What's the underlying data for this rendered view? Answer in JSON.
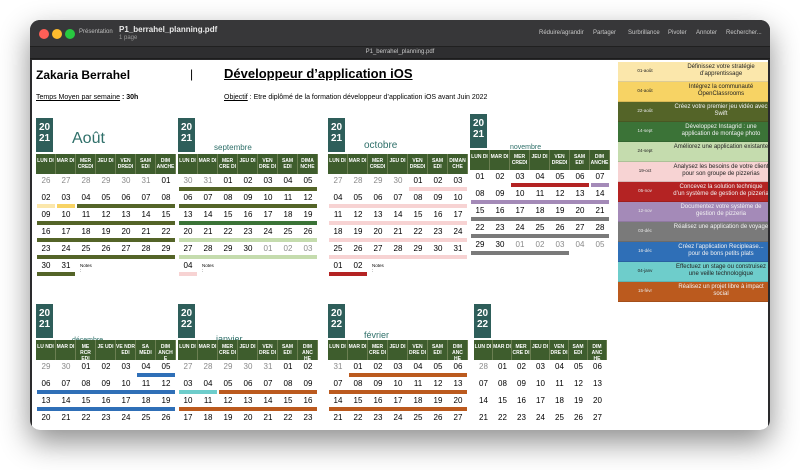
{
  "window": {
    "title": "P1_berrahel_planning.pdf",
    "subtitle": "1 page",
    "sidebar_button": "Présentation",
    "tab_title": "P1_berrahel_planning.pdf",
    "toolbar": [
      {
        "label": "Réduire/agrandir",
        "icon": "zoom-icon"
      },
      {
        "label": "Partager",
        "icon": "share-icon"
      },
      {
        "label": "Surbrillance",
        "icon": "highlight-icon"
      },
      {
        "label": "Pivoter",
        "icon": "rotate-icon"
      },
      {
        "label": "Annoter",
        "icon": "markup-icon"
      },
      {
        "label": "Rechercher...",
        "icon": "search-icon"
      }
    ]
  },
  "document": {
    "name": "Zakaria Berrahel",
    "separator": "|",
    "job_title": "Développeur d’application  iOS",
    "temps_label": "Temps Moyen par semaine",
    "temps_value": " : 30h",
    "objectif_label": "Objectif",
    "objectif_value": " : Etre diplômé de la formation développeur d’application iOS avant Juin 2022",
    "notes_label": "Notes :"
  },
  "legend": [
    {
      "date": "01-août",
      "text": "Définissez votre stratégie d’apprentissage",
      "color": "#fbe7ab"
    },
    {
      "date": "04-août",
      "text": "Intégrez la communauté OpenClassrooms",
      "color": "#f7d364"
    },
    {
      "date": "22-août",
      "text": "Créez votre premier jeu vidéo avec Swift",
      "color": "#546428"
    },
    {
      "date": "14-sept",
      "text": "Développez Instagrid : une application de montage photo",
      "color": "#3b7337"
    },
    {
      "date": "24-sept",
      "text": "Améliorez une application existante",
      "color": "#c5dcae"
    },
    {
      "date": "19-oct",
      "text": "Analysez les besoins de votre client pour son groupe de pizzerias",
      "color": "#f7d3d3"
    },
    {
      "date": "05-nov",
      "text": "Concevez la solution technique d’un système de gestion de pizzeria",
      "color": "#b42323"
    },
    {
      "date": "12-nov",
      "text": "Documentez votre système de gestion de pizzeria",
      "color": "#a48ab8"
    },
    {
      "date": "03-déc",
      "text": "Réalisez une application de voyage",
      "color": "#7a7a7a"
    },
    {
      "date": "16-déc",
      "text": "Créez l’application Reciplease... pour de bons petits plats",
      "color": "#2f6fb7"
    },
    {
      "date": "04-janv",
      "text": "Effectuez un stage ou construisez une veille technologique",
      "color": "#6ecdcb"
    },
    {
      "date": "15-févr",
      "text": "Réalisez un projet libre à impact social",
      "color": "#bb5a1e"
    }
  ],
  "months": [
    {
      "year": [
        "20",
        "21"
      ],
      "name": "Août",
      "days": [
        "LUN DI",
        "MAR DI",
        "MER CREDI",
        "JEU DI",
        "VEN DREDI",
        "SAM EDI",
        "DIM ANCHE"
      ],
      "weeks": [
        {
          "d": [
            "26",
            "27",
            "28",
            "29",
            "30",
            "31",
            "01"
          ],
          "grey": [
            0,
            1,
            2,
            3,
            4,
            5
          ],
          "bars": []
        },
        {
          "d": [
            "02",
            "03",
            "04",
            "05",
            "06",
            "07",
            "08"
          ],
          "grey": [],
          "bars": [
            {
              "c": "#fbe7ab",
              "s": 0,
              "e": 1
            },
            {
              "c": "#f7d364",
              "s": 1,
              "e": 2
            },
            {
              "c": "#546428",
              "s": 2,
              "e": 7
            }
          ]
        },
        {
          "d": [
            "09",
            "10",
            "11",
            "12",
            "13",
            "14",
            "15"
          ],
          "grey": [],
          "bars": [
            {
              "c": "#546428",
              "s": 0,
              "e": 7
            }
          ]
        },
        {
          "d": [
            "16",
            "17",
            "18",
            "19",
            "20",
            "21",
            "22"
          ],
          "grey": [],
          "bars": [
            {
              "c": "#546428",
              "s": 0,
              "e": 7
            }
          ]
        },
        {
          "d": [
            "23",
            "24",
            "25",
            "26",
            "27",
            "28",
            "29"
          ],
          "grey": [],
          "bars": [
            {
              "c": "#546428",
              "s": 0,
              "e": 7
            }
          ]
        },
        {
          "d": [
            "30",
            "31"
          ],
          "grey": [],
          "bars": [
            {
              "c": "#546428",
              "s": 0,
              "e": 2
            }
          ],
          "notes": true
        }
      ]
    },
    {
      "year": [
        "20",
        "21"
      ],
      "name": "septembre",
      "days": [
        "LUN DI",
        "MAR DI",
        "MER CRE DI",
        "JEU DI",
        "VEN DRE DI",
        "SAM EDI",
        "DIMA NCHE"
      ],
      "weeks": [
        {
          "d": [
            "30",
            "31",
            "01",
            "02",
            "03",
            "04",
            "05"
          ],
          "grey": [
            0,
            1
          ],
          "bars": [
            {
              "c": "#546428",
              "s": 0,
              "e": 7
            }
          ]
        },
        {
          "d": [
            "06",
            "07",
            "08",
            "09",
            "10",
            "11",
            "12"
          ],
          "grey": [],
          "bars": [
            {
              "c": "#546428",
              "s": 0,
              "e": 7
            }
          ]
        },
        {
          "d": [
            "13",
            "14",
            "15",
            "16",
            "17",
            "18",
            "19"
          ],
          "grey": [],
          "bars": [
            {
              "c": "#3b7337",
              "s": 0,
              "e": 7
            }
          ]
        },
        {
          "d": [
            "20",
            "21",
            "22",
            "23",
            "24",
            "25",
            "26"
          ],
          "grey": [],
          "bars": [
            {
              "c": "#c5dcae",
              "s": 0,
              "e": 7
            }
          ]
        },
        {
          "d": [
            "27",
            "28",
            "29",
            "30",
            "01",
            "02",
            "03"
          ],
          "grey": [
            4,
            5,
            6
          ],
          "bars": [
            {
              "c": "#c5dcae",
              "s": 0,
              "e": 7
            }
          ]
        },
        {
          "d": [
            "04"
          ],
          "grey": [],
          "bars": [
            {
              "c": "#f7d3d3",
              "s": 0,
              "e": 1
            }
          ],
          "notes": true
        }
      ]
    },
    {
      "year": [
        "20",
        "21"
      ],
      "name": "octobre",
      "days": [
        "LUN DI",
        "MAR DI",
        "MER CREDI",
        "JEU DI",
        "VEN DREDI",
        "SAM EDI",
        "DIMAN CHE"
      ],
      "weeks": [
        {
          "d": [
            "27",
            "28",
            "29",
            "30",
            "01",
            "02",
            "03"
          ],
          "grey": [
            0,
            1,
            2,
            3
          ],
          "bars": [
            {
              "c": "#f7d3d3",
              "s": 4,
              "e": 7
            }
          ]
        },
        {
          "d": [
            "04",
            "05",
            "06",
            "07",
            "08",
            "09",
            "10"
          ],
          "grey": [],
          "bars": [
            {
              "c": "#f7d3d3",
              "s": 0,
              "e": 7
            }
          ]
        },
        {
          "d": [
            "11",
            "12",
            "13",
            "14",
            "15",
            "16",
            "17"
          ],
          "grey": [],
          "bars": [
            {
              "c": "#f7d3d3",
              "s": 0,
              "e": 7
            }
          ]
        },
        {
          "d": [
            "18",
            "19",
            "20",
            "21",
            "22",
            "23",
            "24"
          ],
          "grey": [],
          "bars": [
            {
              "c": "#f7d3d3",
              "s": 0,
              "e": 7
            }
          ]
        },
        {
          "d": [
            "25",
            "26",
            "27",
            "28",
            "29",
            "30",
            "31"
          ],
          "grey": [],
          "bars": [
            {
              "c": "#f7d3d3",
              "s": 0,
              "e": 7
            }
          ]
        },
        {
          "d": [
            "01",
            "02"
          ],
          "grey": [],
          "bars": [
            {
              "c": "#b42323",
              "s": 0,
              "e": 2
            }
          ],
          "notes": true
        }
      ]
    },
    {
      "year": [
        "20",
        "21"
      ],
      "name": "novembre",
      "days": [
        "LUN DI",
        "MAR DI",
        "MER CREDI",
        "JEU DI",
        "VEN DREDI",
        "SAM EDI",
        "DIM ANCHE"
      ],
      "weeks": [
        {
          "d": [
            "01",
            "02",
            "03",
            "04",
            "05",
            "06",
            "07"
          ],
          "grey": [],
          "bars": [
            {
              "c": "#b42323",
              "s": 2,
              "e": 6
            },
            {
              "c": "#a48ab8",
              "s": 6,
              "e": 7
            }
          ]
        },
        {
          "d": [
            "08",
            "09",
            "10",
            "11",
            "12",
            "13",
            "14"
          ],
          "grey": [],
          "bars": [
            {
              "c": "#a48ab8",
              "s": 0,
              "e": 7
            }
          ]
        },
        {
          "d": [
            "15",
            "16",
            "17",
            "18",
            "19",
            "20",
            "21"
          ],
          "grey": [],
          "bars": [
            {
              "c": "#7a7a7a",
              "s": 0,
              "e": 7
            }
          ]
        },
        {
          "d": [
            "22",
            "23",
            "24",
            "25",
            "26",
            "27",
            "28"
          ],
          "grey": [],
          "bars": [
            {
              "c": "#7a7a7a",
              "s": 0,
              "e": 7
            }
          ]
        },
        {
          "d": [
            "29",
            "30",
            "01",
            "02",
            "03",
            "04",
            "05"
          ],
          "grey": [
            2,
            3,
            4,
            5,
            6
          ],
          "bars": [
            {
              "c": "#7a7a7a",
              "s": 0,
              "e": 5
            }
          ]
        }
      ]
    },
    {
      "year": [
        "20",
        "21"
      ],
      "name": "décembre",
      "days": [
        "LU NDI",
        "MAR DI",
        "ME RCR EDI",
        "JE UDI",
        "VE NDR EDI",
        "SA MEDI",
        "DIM ANCH E"
      ],
      "weeks": [
        {
          "d": [
            "29",
            "30",
            "01",
            "02",
            "03",
            "04",
            "05"
          ],
          "grey": [
            0,
            1
          ],
          "bars": [
            {
              "c": "#2f6fb7",
              "s": 5,
              "e": 7
            }
          ]
        },
        {
          "d": [
            "06",
            "07",
            "08",
            "09",
            "10",
            "11",
            "12"
          ],
          "grey": [],
          "bars": [
            {
              "c": "#2f6fb7",
              "s": 0,
              "e": 7
            }
          ]
        },
        {
          "d": [
            "13",
            "14",
            "15",
            "16",
            "17",
            "18",
            "19"
          ],
          "grey": [],
          "bars": [
            {
              "c": "#2f6fb7",
              "s": 0,
              "e": 7
            }
          ]
        },
        {
          "d": [
            "20",
            "21",
            "22",
            "23",
            "24",
            "25",
            "26"
          ],
          "grey": [],
          "bars": []
        }
      ]
    },
    {
      "year": [
        "20",
        "22"
      ],
      "name": "janvier",
      "days": [
        "LUN DI",
        "MAR DI",
        "MER CRE DI",
        "JEU DI",
        "VEN DRE DI",
        "SAM EDI",
        "DIM ANC HE"
      ],
      "weeks": [
        {
          "d": [
            "27",
            "28",
            "29",
            "30",
            "31",
            "01",
            "02"
          ],
          "grey": [
            0,
            1,
            2,
            3,
            4
          ],
          "bars": []
        },
        {
          "d": [
            "03",
            "04",
            "05",
            "06",
            "07",
            "08",
            "09"
          ],
          "grey": [],
          "bars": [
            {
              "c": "#6ecdcb",
              "s": 0,
              "e": 2
            },
            {
              "c": "#bb5a1e",
              "s": 2,
              "e": 7
            }
          ]
        },
        {
          "d": [
            "10",
            "11",
            "12",
            "13",
            "14",
            "15",
            "16"
          ],
          "grey": [],
          "bars": [
            {
              "c": "#bb5a1e",
              "s": 0,
              "e": 7
            }
          ]
        },
        {
          "d": [
            "17",
            "18",
            "19",
            "20",
            "21",
            "22",
            "23"
          ],
          "grey": [],
          "bars": []
        }
      ]
    },
    {
      "year": [
        "20",
        "22"
      ],
      "name": "février",
      "days": [
        "LUN DI",
        "MAR DI",
        "MER CRE DI",
        "JEU DI",
        "VEN DRE DI",
        "SAM EDI",
        "DIM ANC HE"
      ],
      "weeks": [
        {
          "d": [
            "31",
            "01",
            "02",
            "03",
            "04",
            "05",
            "06"
          ],
          "grey": [
            0
          ],
          "bars": [
            {
              "c": "#bb5a1e",
              "s": 1,
              "e": 7
            }
          ]
        },
        {
          "d": [
            "07",
            "08",
            "09",
            "10",
            "11",
            "12",
            "13"
          ],
          "grey": [],
          "bars": [
            {
              "c": "#bb5a1e",
              "s": 0,
              "e": 7
            }
          ]
        },
        {
          "d": [
            "14",
            "15",
            "16",
            "17",
            "18",
            "19",
            "20"
          ],
          "grey": [],
          "bars": [
            {
              "c": "#bb5a1e",
              "s": 0,
              "e": 7
            }
          ]
        },
        {
          "d": [
            "21",
            "22",
            "23",
            "24",
            "25",
            "26",
            "27"
          ],
          "grey": [],
          "bars": []
        }
      ]
    },
    {
      "year": [
        "20",
        "22"
      ],
      "name": "mars",
      "days": [
        "LUN DI",
        "MAR DI",
        "MER CRE DI",
        "JEU DI",
        "VEN DRE DI",
        "SAM EDI",
        "DIM ANC HE"
      ],
      "weeks": [
        {
          "d": [
            "28",
            "01",
            "02",
            "03",
            "04",
            "05",
            "06"
          ],
          "grey": [
            0
          ],
          "bars": []
        },
        {
          "d": [
            "07",
            "08",
            "09",
            "10",
            "11",
            "12",
            "13"
          ],
          "grey": [],
          "bars": []
        },
        {
          "d": [
            "14",
            "15",
            "16",
            "17",
            "18",
            "19",
            "20"
          ],
          "grey": [],
          "bars": []
        },
        {
          "d": [
            "21",
            "22",
            "23",
            "24",
            "25",
            "26",
            "27"
          ],
          "grey": [],
          "bars": []
        }
      ]
    }
  ]
}
